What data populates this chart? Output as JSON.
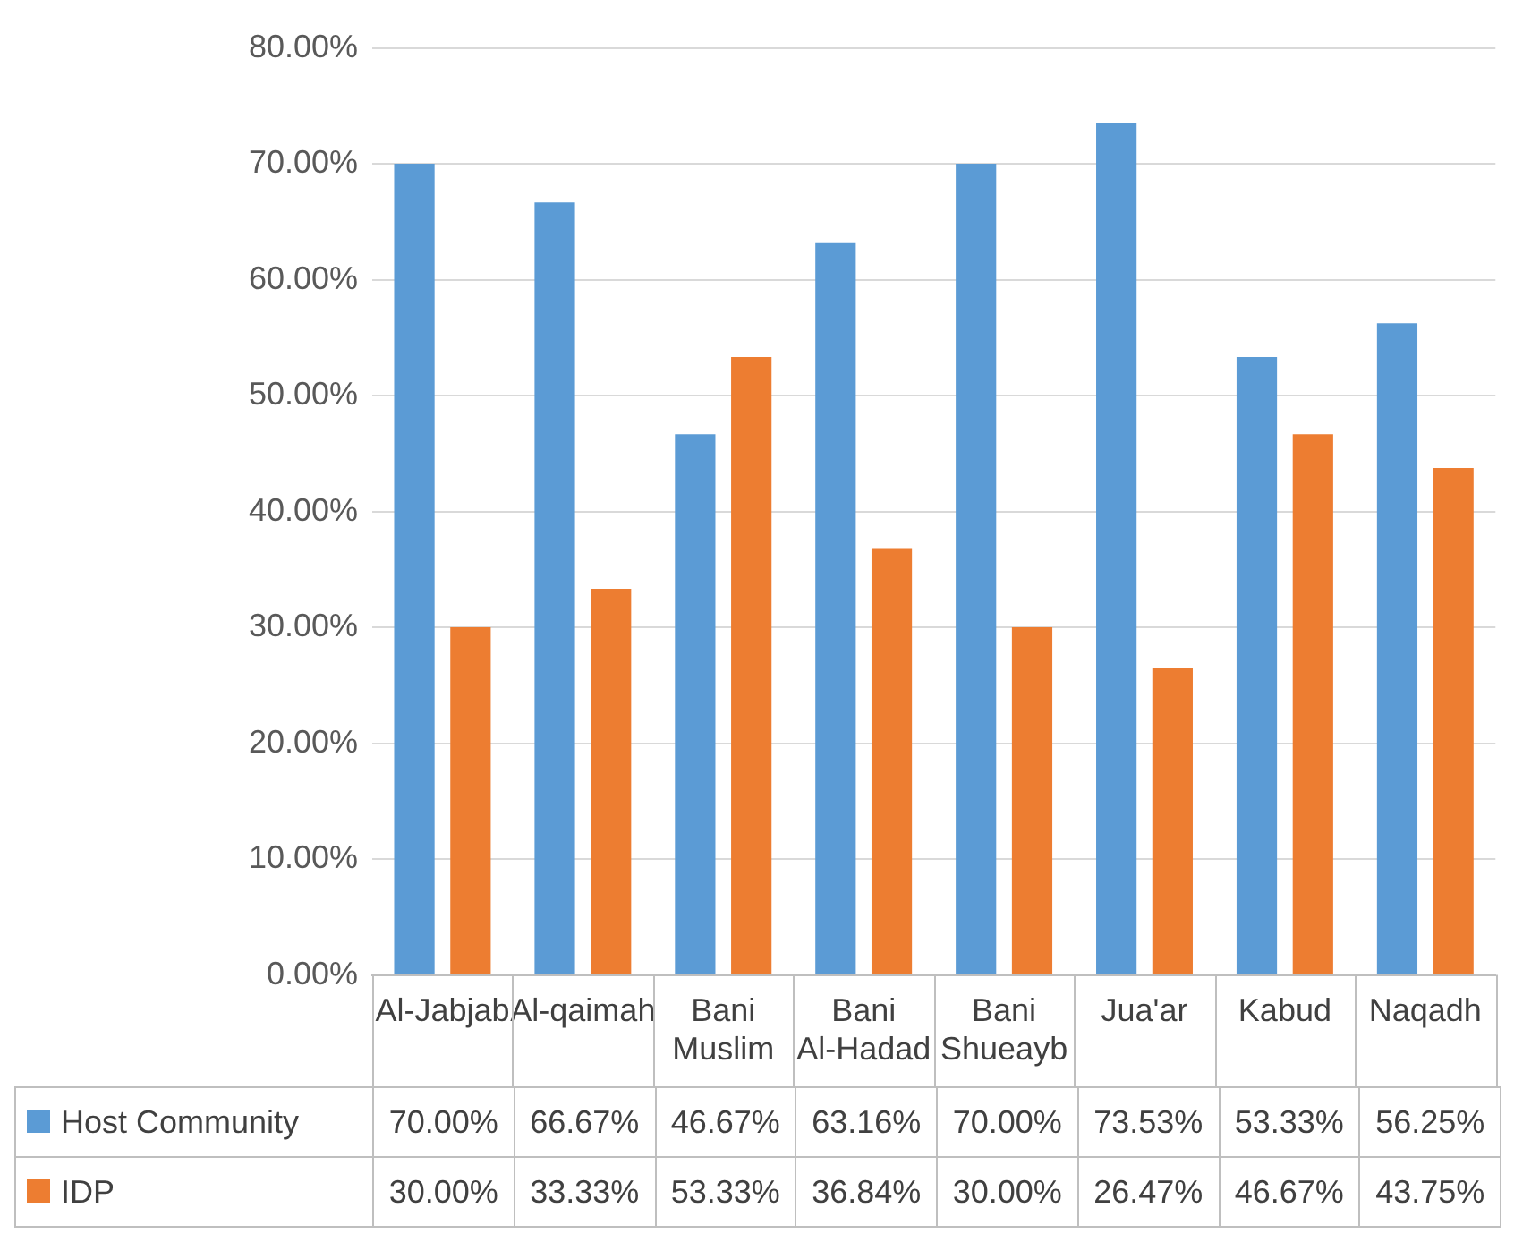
{
  "chart_data": {
    "type": "bar",
    "categories": [
      "Al-Jabjab",
      "Al-qaimah",
      "Bani Muslim",
      "Bani Al-Hadad",
      "Bani Shueayb",
      "Jua'ar",
      "Kabud",
      "Naqadh"
    ],
    "series": [
      {
        "name": "Host Community",
        "color": "#5b9bd5",
        "values": [
          70.0,
          66.67,
          46.67,
          63.16,
          70.0,
          73.53,
          53.33,
          56.25
        ],
        "value_labels": [
          "70.00%",
          "66.67%",
          "46.67%",
          "63.16%",
          "70.00%",
          "73.53%",
          "53.33%",
          "56.25%"
        ]
      },
      {
        "name": "IDP",
        "color": "#ed7d31",
        "values": [
          30.0,
          33.33,
          53.33,
          36.84,
          30.0,
          26.47,
          46.67,
          43.75
        ],
        "value_labels": [
          "30.00%",
          "33.33%",
          "53.33%",
          "36.84%",
          "30.00%",
          "26.47%",
          "46.67%",
          "43.75%"
        ]
      }
    ],
    "ylim": [
      0,
      80
    ],
    "yticks": [
      {
        "value": 0,
        "label": "0.00%"
      },
      {
        "value": 10,
        "label": "10.00%"
      },
      {
        "value": 20,
        "label": "20.00%"
      },
      {
        "value": 30,
        "label": "30.00%"
      },
      {
        "value": 40,
        "label": "40.00%"
      },
      {
        "value": 50,
        "label": "50.00%"
      },
      {
        "value": 60,
        "label": "60.00%"
      },
      {
        "value": 70,
        "label": "70.00%"
      },
      {
        "value": 80,
        "label": "80.00%"
      }
    ],
    "grid": "y",
    "legend": "bottom"
  }
}
